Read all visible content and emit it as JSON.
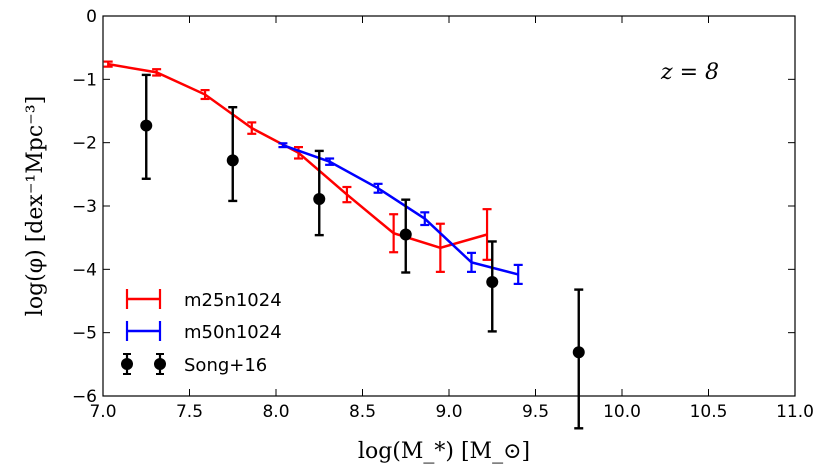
{
  "chart_data": {
    "type": "line",
    "title": "",
    "annotation": "z = 8",
    "xlabel": "log(M_*) [M_⊙]",
    "ylabel": "log(φ) [dex⁻¹Mpc⁻³]",
    "xlim": [
      7.0,
      11.0
    ],
    "ylim": [
      -6,
      0
    ],
    "xticks": [
      "7.0",
      "7.5",
      "8.0",
      "8.5",
      "9.0",
      "9.5",
      "10.0",
      "10.5",
      "11.0"
    ],
    "yticks": [
      "0",
      "−1",
      "−2",
      "−3",
      "−4",
      "−5",
      "−6"
    ],
    "legend_position": "bottom-left",
    "series": [
      {
        "name": "m25n1024",
        "color": "#ff0000",
        "x": [
          7.03,
          7.31,
          7.59,
          7.86,
          8.13,
          8.41,
          8.68,
          8.95,
          9.22
        ],
        "y": [
          -0.76,
          -0.89,
          -1.24,
          -1.77,
          -2.16,
          -2.82,
          -3.43,
          -3.66,
          -3.45
        ],
        "err": [
          0.04,
          0.05,
          0.07,
          0.09,
          0.09,
          0.12,
          0.3,
          0.38,
          0.4
        ]
      },
      {
        "name": "m50n1024",
        "color": "#0000ff",
        "x": [
          8.04,
          8.31,
          8.59,
          8.86,
          9.13,
          9.4
        ],
        "y": [
          -2.04,
          -2.3,
          -2.72,
          -3.2,
          -3.89,
          -4.08
        ],
        "err": [
          0.03,
          0.05,
          0.07,
          0.1,
          0.15,
          0.15
        ]
      },
      {
        "name": "Song+16",
        "color": "#000000",
        "x": [
          7.25,
          7.75,
          8.25,
          8.75,
          9.25,
          9.75
        ],
        "y": [
          -1.73,
          -2.28,
          -2.89,
          -3.45,
          -4.2,
          -5.31
        ],
        "err_up": [
          0.8,
          0.84,
          0.76,
          0.55,
          0.64,
          0.99
        ],
        "err_down": [
          0.84,
          0.64,
          0.57,
          0.6,
          0.78,
          1.2
        ]
      }
    ]
  }
}
